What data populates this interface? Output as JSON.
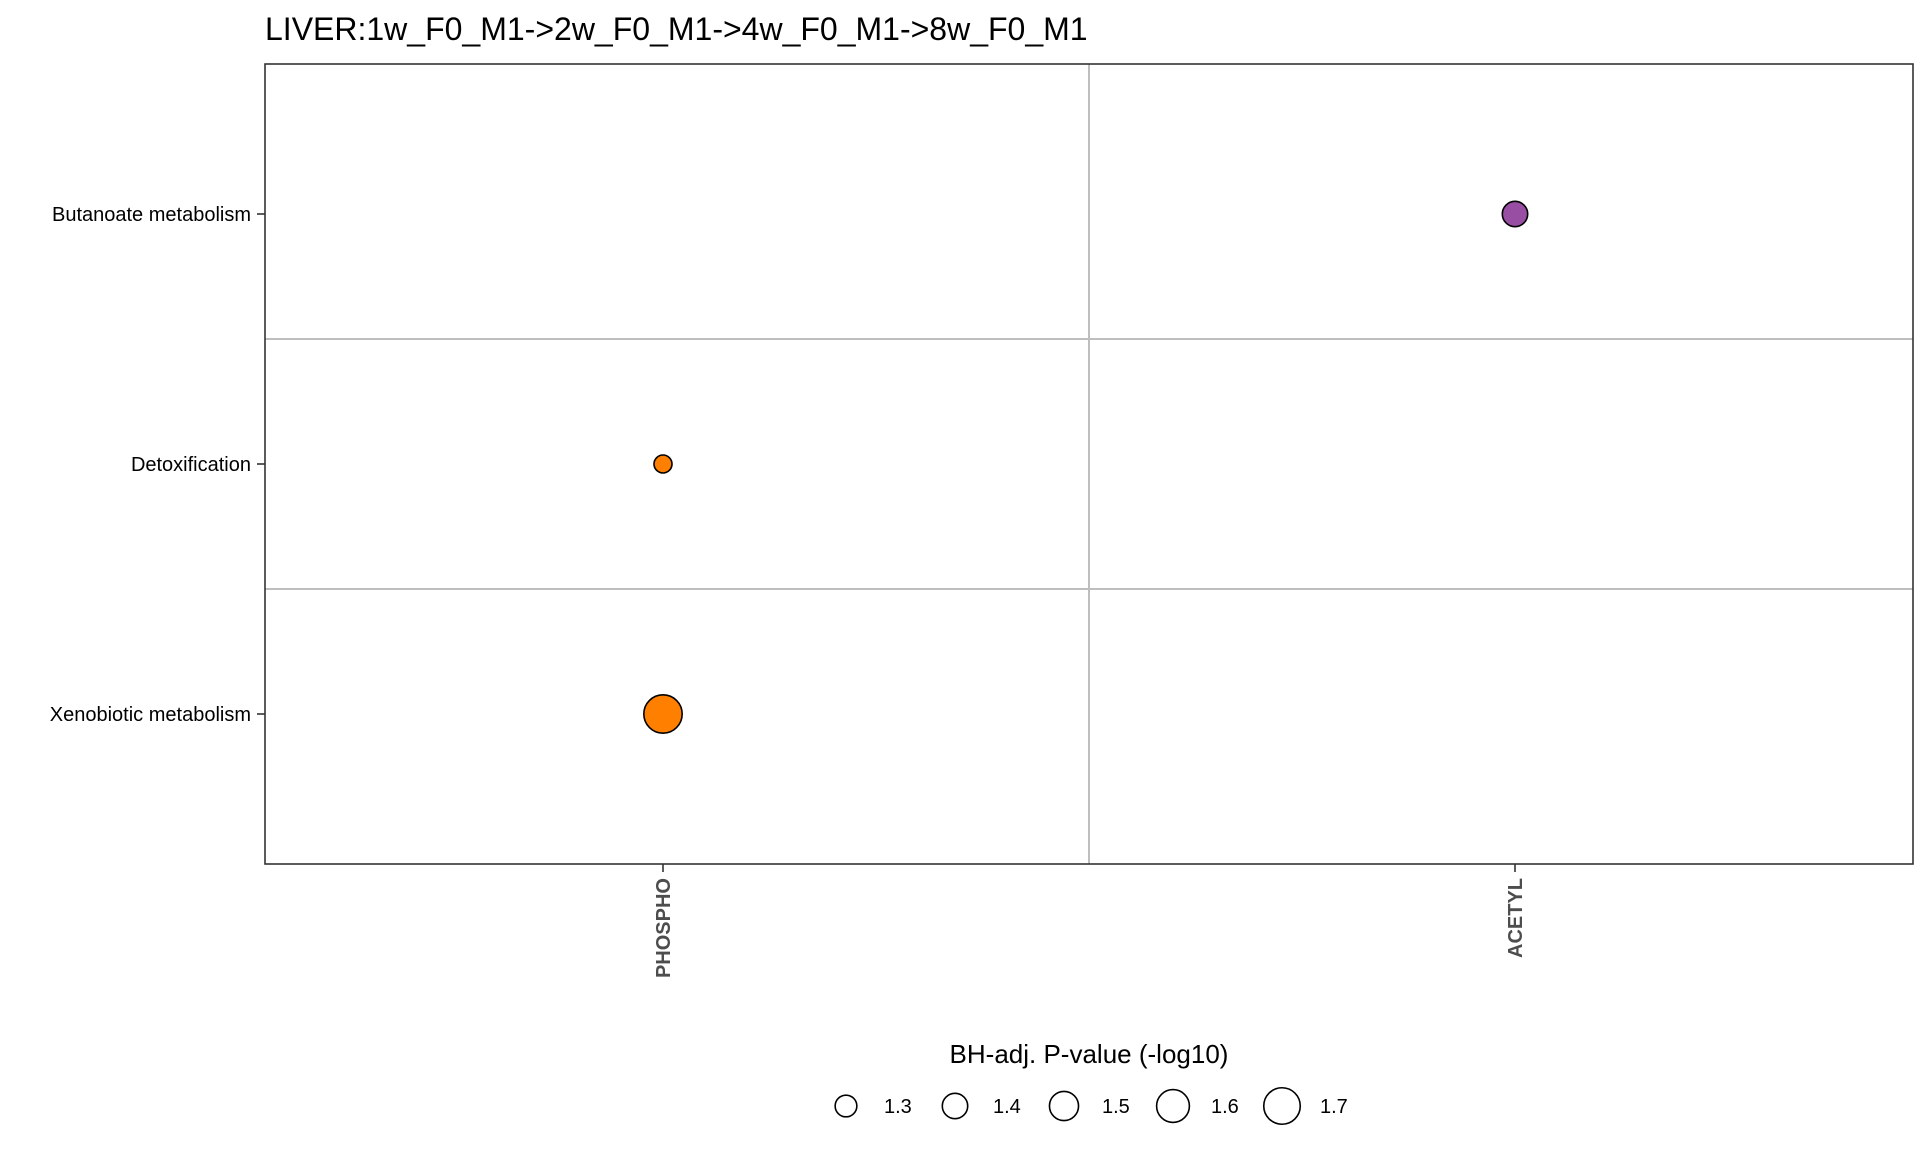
{
  "chart_data": {
    "type": "scatter",
    "title": "LIVER:1w_F0_M1->2w_F0_M1->4w_F0_M1->8w_F0_M1",
    "x_categories": [
      "PHOSPHO",
      "ACETYL"
    ],
    "y_categories": [
      "Butanoate metabolism",
      "Detoxification",
      "Xenobiotic metabolism"
    ],
    "points": [
      {
        "x": "ACETYL",
        "y": "Butanoate metabolism",
        "neg_log10_p": 1.4,
        "color": "#984ea3"
      },
      {
        "x": "PHOSPHO",
        "y": "Detoxification",
        "neg_log10_p": 1.2,
        "color": "#ff7f00"
      },
      {
        "x": "PHOSPHO",
        "y": "Xenobiotic metabolism",
        "neg_log10_p": 1.75,
        "color": "#ff7f00"
      }
    ],
    "size_legend": {
      "title": "BH-adj. P-value (-log10)",
      "values": [
        1.3,
        1.4,
        1.5,
        1.6,
        1.7
      ],
      "labels": [
        "1.3",
        "1.4",
        "1.5",
        "1.6",
        "1.7"
      ],
      "placement": "bottom"
    },
    "grid": true,
    "colors": {
      "PHOSPHO": "#ff7f00",
      "ACETYL": "#984ea3",
      "grid": "#bebebe",
      "panel_border": "#333333"
    }
  }
}
